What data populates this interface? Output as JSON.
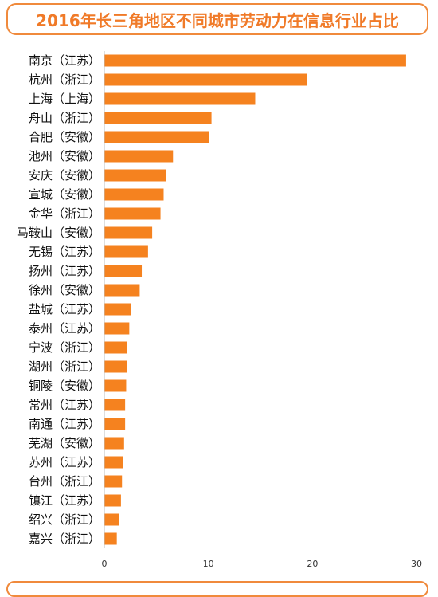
{
  "title": "2016年长三角地区不同城市劳动力在信息行业占比",
  "colors": {
    "bar": "#f5821f",
    "accent": "#f07a28"
  },
  "chart_data": {
    "type": "bar",
    "orientation": "horizontal",
    "title": "2016年长三角地区不同城市劳动力在信息行业占比",
    "categories": [
      "南京（江苏）",
      "杭州（浙江）",
      "上海（上海）",
      "舟山（浙江）",
      "合肥（安徽）",
      "池州（安徽）",
      "安庆（安徽）",
      "宣城（安徽）",
      "金华（浙江）",
      "马鞍山（安徽）",
      "无锡（江苏）",
      "扬州（江苏）",
      "徐州（安徽）",
      "盐城（江苏）",
      "泰州（江苏）",
      "宁波（浙江）",
      "湖州（浙江）",
      "铜陵（安徽）",
      "常州（江苏）",
      "南通（江苏）",
      "芜湖（安徽）",
      "苏州（江苏）",
      "台州（浙江）",
      "镇江（江苏）",
      "绍兴（浙江）",
      "嘉兴（浙江）"
    ],
    "values": [
      29.0,
      19.5,
      14.5,
      10.3,
      10.1,
      6.6,
      5.9,
      5.7,
      5.4,
      4.6,
      4.2,
      3.6,
      3.4,
      2.6,
      2.4,
      2.2,
      2.2,
      2.1,
      2.0,
      2.0,
      1.9,
      1.8,
      1.7,
      1.6,
      1.4,
      1.2
    ],
    "x_ticks": [
      "0",
      "10",
      "20",
      "30"
    ],
    "xlim": [
      0,
      30
    ],
    "xlabel": "",
    "ylabel": "",
    "grid": false
  }
}
